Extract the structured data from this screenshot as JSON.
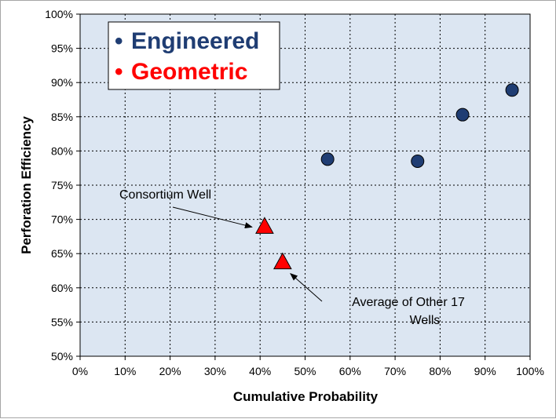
{
  "chart_data": {
    "type": "scatter",
    "title": "",
    "xlabel": "Cumulative Probability",
    "ylabel": "Perforation Efficiency",
    "xlim": [
      0,
      1
    ],
    "ylim": [
      0.5,
      1
    ],
    "x_ticks": [
      "0%",
      "10%",
      "20%",
      "30%",
      "40%",
      "50%",
      "60%",
      "70%",
      "80%",
      "90%",
      "100%"
    ],
    "y_ticks": [
      "50%",
      "55%",
      "60%",
      "65%",
      "70%",
      "75%",
      "80%",
      "85%",
      "90%",
      "95%",
      "100%"
    ],
    "grid": true,
    "legend_position": "top-left",
    "series": [
      {
        "name": "Engineered",
        "marker": "circle",
        "color": "#1f3d73",
        "points": [
          {
            "x": 0.55,
            "y": 0.788
          },
          {
            "x": 0.75,
            "y": 0.785
          },
          {
            "x": 0.85,
            "y": 0.853
          },
          {
            "x": 0.96,
            "y": 0.889
          }
        ]
      },
      {
        "name": "Geometric",
        "marker": "triangle",
        "color": "#ff0000",
        "points": [
          {
            "x": 0.41,
            "y": 0.69
          },
          {
            "x": 0.45,
            "y": 0.638
          }
        ]
      }
    ],
    "annotations": [
      {
        "text": "Consortium Well",
        "target": {
          "x": 0.41,
          "y": 0.69
        }
      },
      {
        "text_lines": [
          "Average of Other 17",
          "Wells"
        ],
        "target": {
          "x": 0.45,
          "y": 0.638
        }
      }
    ],
    "legend": {
      "items": [
        {
          "bullet": "•",
          "label": "Engineered",
          "color": "#1f3d73"
        },
        {
          "bullet": "•",
          "label": "Geometric",
          "color": "#ff0000"
        }
      ]
    }
  }
}
